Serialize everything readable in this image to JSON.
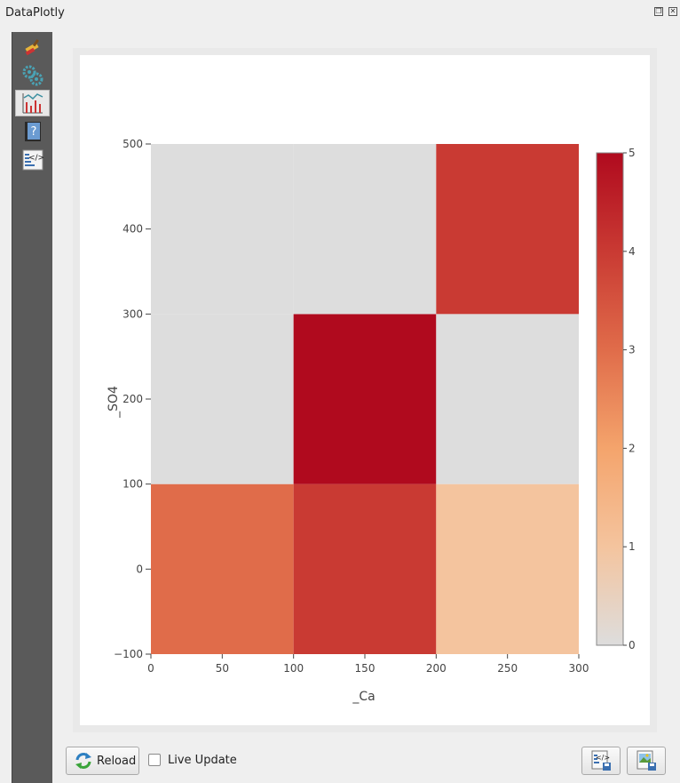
{
  "window": {
    "title": "DataPlotly"
  },
  "sidebar": {
    "items": [
      {
        "icon": "brush-icon"
      },
      {
        "icon": "gears-icon"
      },
      {
        "icon": "plot-icon",
        "active": true
      },
      {
        "icon": "help-book-icon"
      },
      {
        "icon": "code-icon"
      }
    ]
  },
  "chart_data": {
    "type": "heatmap",
    "xlabel": "_Ca",
    "ylabel": "_SO4",
    "xlim": [
      0,
      300
    ],
    "ylim": [
      -100,
      500
    ],
    "x_ticks": [
      "0",
      "50",
      "100",
      "150",
      "200",
      "250",
      "300"
    ],
    "y_ticks": [
      "−100",
      "0",
      "100",
      "200",
      "300",
      "400",
      "500"
    ],
    "x_bins": [
      [
        0,
        100
      ],
      [
        100,
        200
      ],
      [
        200,
        300
      ]
    ],
    "y_bins": [
      [
        -100,
        100
      ],
      [
        100,
        300
      ],
      [
        300,
        500
      ]
    ],
    "z": [
      [
        3,
        4,
        1
      ],
      [
        0,
        5,
        0
      ],
      [
        0,
        0,
        4
      ]
    ],
    "colorscale": [
      "#dddddd",
      "#f4c49e",
      "#f4a46c",
      "#e06c4a",
      "#c93a33",
      "#b00a1e"
    ],
    "colorbar": {
      "ticks": [
        "0",
        "1",
        "2",
        "3",
        "4",
        "5"
      ],
      "range": [
        0,
        5
      ]
    }
  },
  "controls": {
    "reload_label": "Reload",
    "live_update_label": "Live Update",
    "live_update_checked": false
  }
}
